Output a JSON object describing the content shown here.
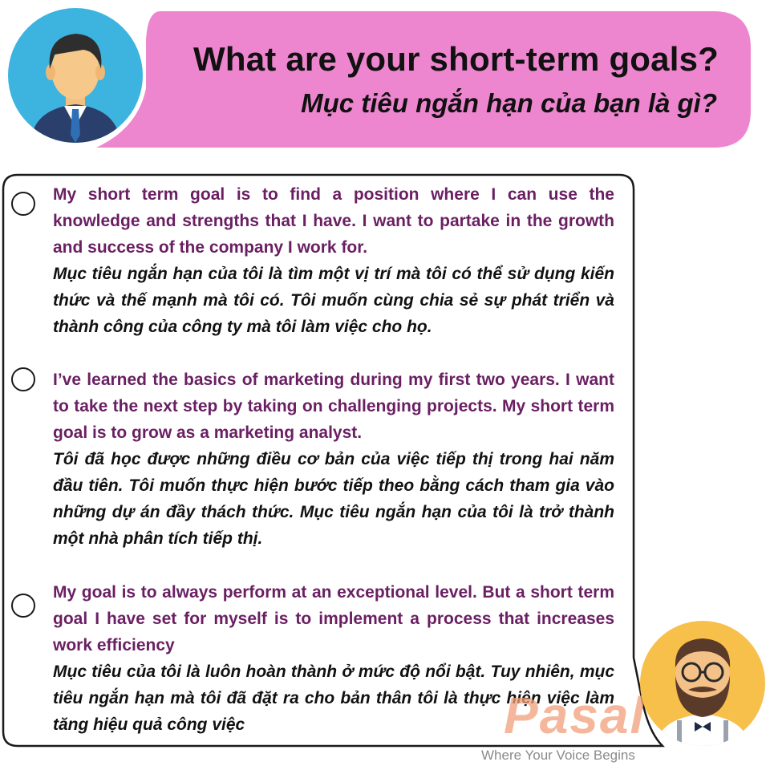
{
  "header": {
    "question_en": "What are your  short-term goals?",
    "question_vi": "Mục tiêu ngắn hạn của bạn là gì?",
    "bubble_color": "#ee86cf"
  },
  "answers": [
    {
      "en": "My short term goal is to find a position where I can use the knowledge and strengths that I have. I want to partake in the growth and success of the company I work for.",
      "vi": "Mục tiêu ngắn hạn của tôi là tìm một vị trí mà tôi có thể sử dụng kiến thức và thế mạnh mà tôi có. Tôi muốn cùng chia sẻ sự phát triển và thành công của công ty mà tôi làm việc cho họ."
    },
    {
      "en": "I’ve learned the basics of marketing during my first two years. I want to take the next step by taking on challenging projects. My short term goal is to grow as a marketing analyst.",
      "vi": "Tôi đã học được những điều cơ bản của việc tiếp thị trong hai năm đầu tiên. Tôi muốn thực hiện bước tiếp theo bằng cách tham gia vào những dự án đầy thách thức. Mục tiêu ngắn hạn của tôi là trở thành một nhà phân tích tiếp thị."
    },
    {
      "en": "My goal is to always perform at an exceptional level. But a short term goal I have set for myself is to implement a process that increases work efficiency",
      "vi": "Mục tiêu của tôi là luôn hoàn thành ở mức độ nổi bật. Tuy nhiên, mục tiêu ngắn hạn mà tôi đã đặt ra cho bản thân tôi là thực hiện việc làm tăng hiệu quả công việc"
    }
  ],
  "branding": {
    "logo_text": "Pasal",
    "tagline": "Where Your Voice Begins",
    "logo_color": "#f2a07a"
  },
  "icons": {
    "top_avatar": "businessman-avatar-icon",
    "bottom_avatar": "bearded-man-avatar-icon"
  }
}
